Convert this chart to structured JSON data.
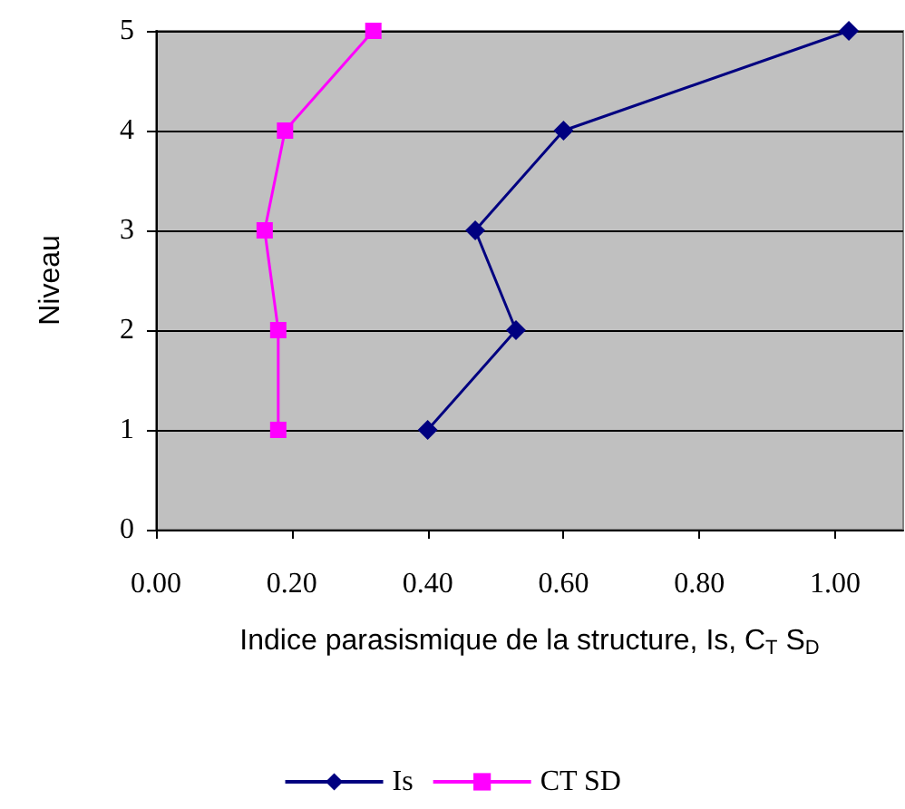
{
  "chart_data": {
    "type": "line",
    "xlabel": "Indice parasismique de la structure, Is, C$_{T}$ S$_{D}$",
    "ylabel": "Niveau",
    "xlim": [
      0,
      1.1
    ],
    "xticks": [
      {
        "value": 0,
        "label": "0.00"
      },
      {
        "value": 0.2,
        "label": "0.20"
      },
      {
        "value": 0.4,
        "label": "0.40"
      },
      {
        "value": 0.6,
        "label": "0.60"
      },
      {
        "value": 0.8,
        "label": "0.80"
      },
      {
        "value": 1.0,
        "label": "1.00"
      }
    ],
    "ylim": [
      0,
      5
    ],
    "yticks": [
      0,
      1,
      2,
      3,
      4,
      5
    ],
    "grid": "y",
    "legend": "bottom",
    "line_style": "solid",
    "series": [
      {
        "name": "Is",
        "color": "#000080",
        "marker": "diamond",
        "x": [
          0.4,
          0.53,
          0.47,
          0.6,
          1.02
        ],
        "values": [
          1,
          2,
          3,
          4,
          5
        ]
      },
      {
        "name": "CT SD",
        "color": "#ff00ff",
        "marker": "square",
        "x": [
          0.18,
          0.18,
          0.16,
          0.19,
          0.32
        ],
        "values": [
          1,
          2,
          3,
          4,
          5
        ]
      }
    ]
  }
}
